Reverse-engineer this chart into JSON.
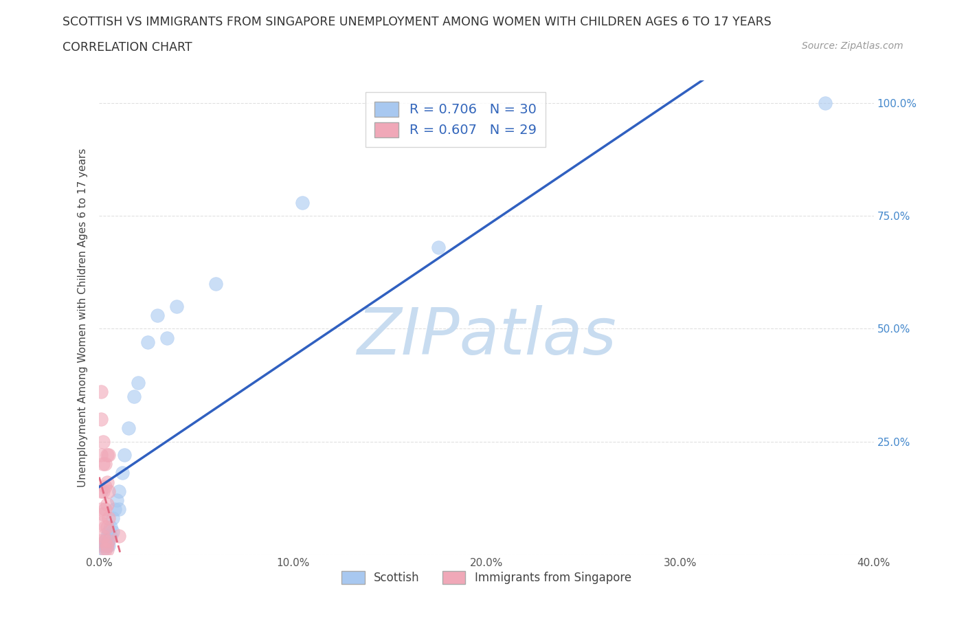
{
  "title_line1": "SCOTTISH VS IMMIGRANTS FROM SINGAPORE UNEMPLOYMENT AMONG WOMEN WITH CHILDREN AGES 6 TO 17 YEARS",
  "title_line2": "CORRELATION CHART",
  "source_text": "Source: ZipAtlas.com",
  "ylabel": "Unemployment Among Women with Children Ages 6 to 17 years",
  "xlim": [
    0.0,
    0.4
  ],
  "ylim": [
    0.0,
    1.05
  ],
  "xticks": [
    0.0,
    0.1,
    0.2,
    0.3,
    0.4
  ],
  "xticklabels": [
    "0.0%",
    "10.0%",
    "20.0%",
    "30.0%",
    "40.0%"
  ],
  "yticks": [
    0.0,
    0.25,
    0.5,
    0.75,
    1.0
  ],
  "yticklabels": [
    "",
    "25.0%",
    "50.0%",
    "75.0%",
    "100.0%"
  ],
  "watermark": "ZIPatlas",
  "watermark_color": "#c8dcf0",
  "background_color": "#ffffff",
  "grid_color": "#dddddd",
  "legend_R1": "R = 0.706",
  "legend_N1": "N = 30",
  "legend_R2": "R = 0.607",
  "legend_N2": "N = 29",
  "legend_label1": "Scottish",
  "legend_label2": "Immigrants from Singapore",
  "series1_color": "#a8c8f0",
  "series2_color": "#f0a8b8",
  "line1_color": "#3060c0",
  "line2_color": "#e06880",
  "scottish_x": [
    0.002,
    0.002,
    0.003,
    0.003,
    0.004,
    0.004,
    0.005,
    0.005,
    0.005,
    0.006,
    0.006,
    0.007,
    0.007,
    0.008,
    0.009,
    0.01,
    0.01,
    0.012,
    0.013,
    0.015,
    0.018,
    0.02,
    0.025,
    0.03,
    0.035,
    0.04,
    0.06,
    0.105,
    0.175,
    0.375
  ],
  "scottish_y": [
    0.02,
    0.01,
    0.03,
    0.02,
    0.04,
    0.02,
    0.05,
    0.03,
    0.02,
    0.06,
    0.04,
    0.08,
    0.05,
    0.1,
    0.12,
    0.14,
    0.1,
    0.18,
    0.22,
    0.28,
    0.35,
    0.38,
    0.47,
    0.53,
    0.48,
    0.55,
    0.6,
    0.78,
    0.68,
    1.0
  ],
  "singapore_x": [
    0.001,
    0.001,
    0.001,
    0.001,
    0.001,
    0.001,
    0.001,
    0.002,
    0.002,
    0.002,
    0.002,
    0.002,
    0.003,
    0.003,
    0.003,
    0.003,
    0.003,
    0.003,
    0.004,
    0.004,
    0.004,
    0.004,
    0.004,
    0.004,
    0.005,
    0.005,
    0.005,
    0.005,
    0.01
  ],
  "singapore_y": [
    0.36,
    0.3,
    0.22,
    0.14,
    0.1,
    0.07,
    0.03,
    0.25,
    0.2,
    0.14,
    0.09,
    0.04,
    0.2,
    0.15,
    0.1,
    0.06,
    0.03,
    0.01,
    0.22,
    0.16,
    0.11,
    0.06,
    0.02,
    0.01,
    0.22,
    0.14,
    0.08,
    0.03,
    0.04
  ]
}
